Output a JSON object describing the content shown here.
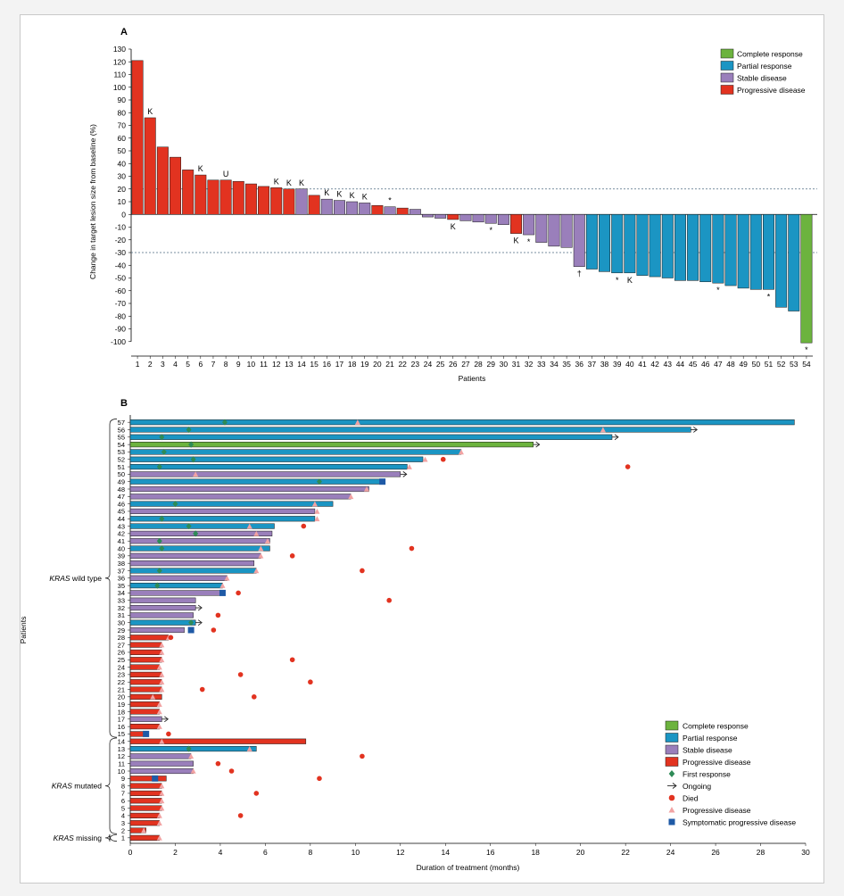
{
  "colors": {
    "complete": "#6cb33e",
    "partial": "#1b95c3",
    "stable": "#9a7fbb",
    "progressive": "#e23320",
    "first_response": "#2e8b57",
    "died": "#e23320",
    "pd_marker": "#f2a3a3",
    "symptomatic": "#1f5aa6"
  },
  "chart_data": [
    {
      "type": "bar",
      "panel_label": "A",
      "ylabel": "Change in target lesion size from baseline (%)",
      "xlabel": "Patients",
      "ylim": [
        -110,
        130
      ],
      "yticks": [
        "130",
        "120",
        "110",
        "100",
        "90",
        "80",
        "70",
        "60",
        "50",
        "40",
        "30",
        "20",
        "10",
        "0",
        "-10",
        "-20",
        "-30",
        "-40",
        "-50",
        "-60",
        "-70",
        "-80",
        "-90",
        "-100"
      ],
      "ref_lines": [
        20,
        -30
      ],
      "categories": [
        "1",
        "2",
        "3",
        "4",
        "5",
        "6",
        "7",
        "8",
        "9",
        "10",
        "11",
        "12",
        "13",
        "14",
        "15",
        "16",
        "17",
        "18",
        "19",
        "20",
        "21",
        "22",
        "23",
        "24",
        "25",
        "26",
        "27",
        "28",
        "29",
        "30",
        "31",
        "32",
        "33",
        "34",
        "35",
        "36",
        "37",
        "38",
        "39",
        "40",
        "41",
        "42",
        "43",
        "44",
        "45",
        "46",
        "47",
        "48",
        "49",
        "50",
        "51",
        "52",
        "53",
        "54"
      ],
      "values": [
        121,
        76,
        53,
        45,
        35,
        31,
        27,
        27,
        26,
        24,
        22,
        21,
        20,
        20,
        15,
        12,
        11,
        10,
        9,
        7,
        6,
        5,
        4,
        -2,
        -3,
        -4,
        -5,
        -6,
        -7,
        -8,
        -15,
        -16,
        -22,
        -25,
        -26,
        -41,
        -43,
        -45,
        -46,
        -46,
        -48,
        -49,
        -50,
        -52,
        -52,
        -53,
        -54,
        -56,
        -58,
        -59,
        -59,
        -73,
        -76,
        -101
      ],
      "response": [
        "PD",
        "PD",
        "PD",
        "PD",
        "PD",
        "PD",
        "PD",
        "PD",
        "PD",
        "PD",
        "PD",
        "PD",
        "PD",
        "SD",
        "PD",
        "SD",
        "SD",
        "SD",
        "SD",
        "PD",
        "SD",
        "PD",
        "SD",
        "SD",
        "SD",
        "PD",
        "SD",
        "SD",
        "SD",
        "SD",
        "PD",
        "SD",
        "SD",
        "SD",
        "SD",
        "SD",
        "PR",
        "PR",
        "PR",
        "PR",
        "PR",
        "PR",
        "PR",
        "PR",
        "PR",
        "PR",
        "PR",
        "PR",
        "PR",
        "PR",
        "PR",
        "PR",
        "PR",
        "CR"
      ],
      "annotations": [
        {
          "patient": 2,
          "text": "K",
          "where": "above"
        },
        {
          "patient": 6,
          "text": "K",
          "where": "above"
        },
        {
          "patient": 8,
          "text": "U",
          "where": "above"
        },
        {
          "patient": 12,
          "text": "K",
          "where": "above"
        },
        {
          "patient": 13,
          "text": "K",
          "where": "above"
        },
        {
          "patient": 14,
          "text": "K",
          "where": "above"
        },
        {
          "patient": 16,
          "text": "K",
          "where": "above"
        },
        {
          "patient": 17,
          "text": "K",
          "where": "above"
        },
        {
          "patient": 18,
          "text": "K",
          "where": "above"
        },
        {
          "patient": 19,
          "text": "K",
          "where": "above"
        },
        {
          "patient": 21,
          "text": "*",
          "where": "above"
        },
        {
          "patient": 26,
          "text": "K",
          "where": "below"
        },
        {
          "patient": 29,
          "text": "*",
          "where": "below"
        },
        {
          "patient": 31,
          "text": "K",
          "where": "below"
        },
        {
          "patient": 32,
          "text": "*",
          "where": "below"
        },
        {
          "patient": 36,
          "text": "†",
          "where": "below"
        },
        {
          "patient": 39,
          "text": "*",
          "where": "below"
        },
        {
          "patient": 40,
          "text": "K",
          "where": "below"
        },
        {
          "patient": 47,
          "text": "*",
          "where": "below"
        },
        {
          "patient": 51,
          "text": "*",
          "where": "below"
        },
        {
          "patient": 54,
          "text": "*",
          "where": "below"
        }
      ],
      "legend": [
        {
          "label": "Complete response",
          "key": "complete"
        },
        {
          "label": "Partial response",
          "key": "partial"
        },
        {
          "label": "Stable disease",
          "key": "stable"
        },
        {
          "label": "Progressive disease",
          "key": "progressive"
        }
      ],
      "legend_position": "top-right"
    },
    {
      "type": "swimmer",
      "panel_label": "B",
      "ylabel": "Patients",
      "xlabel": "Duration of treatment (months)",
      "xlim": [
        0,
        30
      ],
      "xticks": [
        "0",
        "2",
        "4",
        "6",
        "8",
        "10",
        "12",
        "14",
        "16",
        "18",
        "20",
        "22",
        "24",
        "26",
        "28",
        "30"
      ],
      "groups": [
        {
          "label_italic": "KRAS",
          "label_rest": " wild type",
          "from": 15,
          "to": 57
        },
        {
          "label_italic": "KRAS",
          "label_rest": " mutated",
          "from": 2,
          "to": 14
        },
        {
          "label_italic": "KRAS",
          "label_rest": " missing",
          "from": 1,
          "to": 1
        }
      ],
      "patients": [
        {
          "id": "57",
          "end": 29.5,
          "resp": "PR",
          "first": 4.2,
          "pd": 10.1,
          "died": null,
          "symp": null,
          "ongoing": false
        },
        {
          "id": "56",
          "end": 24.9,
          "resp": "PR",
          "first": 2.6,
          "pd": 21,
          "died": null,
          "symp": null,
          "ongoing": true
        },
        {
          "id": "55",
          "end": 21.4,
          "resp": "PR",
          "first": 1.4,
          "pd": null,
          "died": null,
          "symp": null,
          "ongoing": true
        },
        {
          "id": "54",
          "end": 17.9,
          "resp": "CR",
          "first": 2.7,
          "pd": null,
          "died": null,
          "symp": null,
          "ongoing": true
        },
        {
          "id": "53",
          "end": 14.7,
          "resp": "PR",
          "first": 1.5,
          "pd": 14.7,
          "died": null,
          "symp": null,
          "ongoing": false
        },
        {
          "id": "52",
          "end": 13,
          "resp": "PR",
          "first": 2.8,
          "pd": 13.1,
          "died": 13.9,
          "symp": null,
          "ongoing": false
        },
        {
          "id": "51",
          "end": 12.3,
          "resp": "PR",
          "first": 1.3,
          "pd": 12.4,
          "died": 22.1,
          "symp": null,
          "ongoing": false
        },
        {
          "id": "50",
          "end": 12,
          "resp": "SD",
          "first": null,
          "pd": 2.9,
          "died": null,
          "symp": null,
          "ongoing": true
        },
        {
          "id": "49",
          "end": 11.2,
          "resp": "PR",
          "first": 8.4,
          "pd": null,
          "died": null,
          "symp": 11.2,
          "ongoing": false
        },
        {
          "id": "48",
          "end": 10.6,
          "resp": "SD",
          "first": null,
          "pd": 10.5,
          "died": null,
          "symp": null,
          "ongoing": false
        },
        {
          "id": "47",
          "end": 9.8,
          "resp": "SD",
          "first": null,
          "pd": 9.8,
          "died": null,
          "symp": null,
          "ongoing": false
        },
        {
          "id": "46",
          "end": 9,
          "resp": "PR",
          "first": 2,
          "pd": 8.2,
          "died": null,
          "symp": null,
          "ongoing": false
        },
        {
          "id": "45",
          "end": 8.2,
          "resp": "SD",
          "first": null,
          "pd": 8.3,
          "died": null,
          "symp": null,
          "ongoing": false
        },
        {
          "id": "44",
          "end": 8.2,
          "resp": "PR",
          "first": 1.4,
          "pd": 8.3,
          "died": null,
          "symp": null,
          "ongoing": false
        },
        {
          "id": "43",
          "end": 6.4,
          "resp": "PR",
          "first": 2.6,
          "pd": 5.3,
          "died": 7.7,
          "symp": null,
          "ongoing": false
        },
        {
          "id": "42",
          "end": 6.3,
          "resp": "SD",
          "first": 2.9,
          "pd": 5.6,
          "died": null,
          "symp": null,
          "ongoing": false
        },
        {
          "id": "41",
          "end": 6.2,
          "resp": "SD",
          "first": 1.3,
          "pd": 6.1,
          "died": null,
          "symp": null,
          "ongoing": false
        },
        {
          "id": "40",
          "end": 6.2,
          "resp": "PR",
          "first": 1.4,
          "pd": 5.8,
          "died": 12.5,
          "symp": null,
          "ongoing": false
        },
        {
          "id": "39",
          "end": 5.8,
          "resp": "SD",
          "first": null,
          "pd": 5.8,
          "died": 7.2,
          "symp": null,
          "ongoing": false
        },
        {
          "id": "38",
          "end": 5.5,
          "resp": "SD",
          "first": null,
          "pd": null,
          "died": null,
          "symp": null,
          "ongoing": false
        },
        {
          "id": "37",
          "end": 5.6,
          "resp": "PR",
          "first": 1.3,
          "pd": 5.6,
          "died": 10.3,
          "symp": null,
          "ongoing": false
        },
        {
          "id": "36",
          "end": 4.3,
          "resp": "SD",
          "first": null,
          "pd": 4.3,
          "died": null,
          "symp": null,
          "ongoing": false
        },
        {
          "id": "35",
          "end": 4.1,
          "resp": "PR",
          "first": 1.2,
          "pd": 4.1,
          "died": null,
          "symp": null,
          "ongoing": false
        },
        {
          "id": "34",
          "end": 4.1,
          "resp": "SD",
          "first": null,
          "pd": null,
          "died": 4.8,
          "symp": 4.1,
          "ongoing": false
        },
        {
          "id": "33",
          "end": 2.9,
          "resp": "SD",
          "first": null,
          "pd": null,
          "died": 11.5,
          "symp": null,
          "ongoing": false
        },
        {
          "id": "32",
          "end": 2.9,
          "resp": "SD",
          "first": null,
          "pd": null,
          "died": null,
          "symp": null,
          "ongoing": true
        },
        {
          "id": "31",
          "end": 2.8,
          "resp": "SD",
          "first": null,
          "pd": null,
          "died": 3.9,
          "symp": null,
          "ongoing": false
        },
        {
          "id": "30",
          "end": 2.9,
          "resp": "PR",
          "first": 2.7,
          "pd": null,
          "died": null,
          "symp": null,
          "ongoing": true
        },
        {
          "id": "29",
          "end": 2.4,
          "resp": "SD",
          "first": null,
          "pd": null,
          "died": 3.7,
          "symp": 2.7,
          "ongoing": false
        },
        {
          "id": "28",
          "end": 1.7,
          "resp": "PD",
          "first": null,
          "pd": 1.7,
          "died": 1.8,
          "symp": null,
          "ongoing": false
        },
        {
          "id": "27",
          "end": 1.4,
          "resp": "PD",
          "first": null,
          "pd": 1.4,
          "died": null,
          "symp": null,
          "ongoing": false
        },
        {
          "id": "26",
          "end": 1.4,
          "resp": "PD",
          "first": null,
          "pd": 1.4,
          "died": null,
          "symp": null,
          "ongoing": false
        },
        {
          "id": "25",
          "end": 1.4,
          "resp": "PD",
          "first": null,
          "pd": 1.4,
          "died": 7.2,
          "symp": null,
          "ongoing": false
        },
        {
          "id": "24",
          "end": 1.3,
          "resp": "PD",
          "first": null,
          "pd": 1.3,
          "died": null,
          "symp": null,
          "ongoing": false
        },
        {
          "id": "23",
          "end": 1.4,
          "resp": "PD",
          "first": null,
          "pd": 1.4,
          "died": 4.9,
          "symp": null,
          "ongoing": false
        },
        {
          "id": "22",
          "end": 1.4,
          "resp": "PD",
          "first": null,
          "pd": 1.4,
          "died": 8,
          "symp": null,
          "ongoing": false
        },
        {
          "id": "21",
          "end": 1.4,
          "resp": "PD",
          "first": null,
          "pd": 1.4,
          "died": 3.2,
          "symp": null,
          "ongoing": false
        },
        {
          "id": "20",
          "end": 1.4,
          "resp": "PD",
          "first": null,
          "pd": 1,
          "died": 5.5,
          "symp": null,
          "ongoing": false
        },
        {
          "id": "19",
          "end": 1.3,
          "resp": "PD",
          "first": null,
          "pd": 1.3,
          "died": null,
          "symp": null,
          "ongoing": false
        },
        {
          "id": "18",
          "end": 1.3,
          "resp": "PD",
          "first": null,
          "pd": 1.3,
          "died": null,
          "symp": null,
          "ongoing": false
        },
        {
          "id": "17",
          "end": 1.4,
          "resp": "SD",
          "first": null,
          "pd": null,
          "died": null,
          "symp": null,
          "ongoing": true
        },
        {
          "id": "16",
          "end": 1.3,
          "resp": "PD",
          "first": null,
          "pd": 1.3,
          "died": null,
          "symp": null,
          "ongoing": false
        },
        {
          "id": "15",
          "end": 0.7,
          "resp": "PD",
          "first": null,
          "pd": null,
          "died": 1.7,
          "symp": 0.7,
          "ongoing": false
        },
        {
          "id": "14",
          "end": 7.8,
          "resp": "PD",
          "first": null,
          "pd": 1.4,
          "died": null,
          "symp": null,
          "ongoing": false
        },
        {
          "id": "13",
          "end": 5.6,
          "resp": "PR",
          "first": 2.6,
          "pd": 5.3,
          "died": null,
          "symp": null,
          "ongoing": false
        },
        {
          "id": "12",
          "end": 2.7,
          "resp": "SD",
          "first": null,
          "pd": 2.7,
          "died": 10.3,
          "symp": null,
          "ongoing": false
        },
        {
          "id": "11",
          "end": 2.8,
          "resp": "SD",
          "first": null,
          "pd": null,
          "died": 3.9,
          "symp": null,
          "ongoing": false
        },
        {
          "id": "10",
          "end": 2.8,
          "resp": "SD",
          "first": null,
          "pd": 2.8,
          "died": 4.5,
          "symp": null,
          "ongoing": false
        },
        {
          "id": "9",
          "end": 1.6,
          "resp": "PD",
          "first": null,
          "pd": null,
          "died": 8.4,
          "symp": 1.1,
          "ongoing": false
        },
        {
          "id": "8",
          "end": 1.4,
          "resp": "PD",
          "first": null,
          "pd": 1.4,
          "died": null,
          "symp": null,
          "ongoing": false
        },
        {
          "id": "7",
          "end": 1.4,
          "resp": "PD",
          "first": null,
          "pd": 1.4,
          "died": 5.6,
          "symp": null,
          "ongoing": false
        },
        {
          "id": "6",
          "end": 1.4,
          "resp": "PD",
          "first": null,
          "pd": 1.4,
          "died": null,
          "symp": null,
          "ongoing": false
        },
        {
          "id": "5",
          "end": 1.4,
          "resp": "PD",
          "first": null,
          "pd": 1.4,
          "died": null,
          "symp": null,
          "ongoing": false
        },
        {
          "id": "4",
          "end": 1.3,
          "resp": "PD",
          "first": null,
          "pd": 1.3,
          "died": 4.9,
          "symp": null,
          "ongoing": false
        },
        {
          "id": "3",
          "end": 1.3,
          "resp": "PD",
          "first": null,
          "pd": 1.3,
          "died": null,
          "symp": null,
          "ongoing": false
        },
        {
          "id": "2",
          "end": 0.7,
          "resp": "PD",
          "first": null,
          "pd": 0.6,
          "died": null,
          "symp": null,
          "ongoing": false
        },
        {
          "id": "1",
          "end": 1.3,
          "resp": "PD",
          "first": null,
          "pd": 1.3,
          "died": null,
          "symp": null,
          "ongoing": false
        }
      ],
      "legend": [
        {
          "label": "Complete response",
          "kind": "swatch",
          "key": "complete"
        },
        {
          "label": "Partial response",
          "kind": "swatch",
          "key": "partial"
        },
        {
          "label": "Stable disease",
          "kind": "swatch",
          "key": "stable"
        },
        {
          "label": "Progressive disease",
          "kind": "swatch",
          "key": "progressive"
        },
        {
          "label": "First response",
          "kind": "diamond",
          "key": "first_response"
        },
        {
          "label": "Ongoing",
          "kind": "arrow",
          "key": "ongoing"
        },
        {
          "label": "Died",
          "kind": "circle",
          "key": "died"
        },
        {
          "label": "Progressive disease",
          "kind": "triangle",
          "key": "pd_marker"
        },
        {
          "label": "Symptomatic progressive disease",
          "kind": "square",
          "key": "symptomatic"
        }
      ],
      "legend_position": "bottom-right"
    }
  ]
}
